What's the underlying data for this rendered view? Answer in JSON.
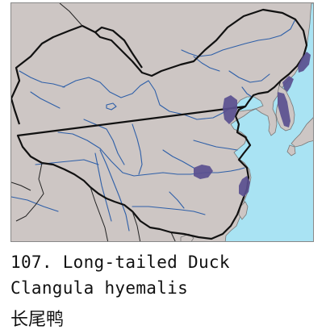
{
  "species": {
    "heading": "107. Long-tailed Duck",
    "scientific_name": "Clangula hyemalis",
    "chinese_name": "长尾鸭"
  },
  "map": {
    "colors": {
      "land": "#cdc6c4",
      "sea": "#a9e3f3",
      "range": "#5a4f8f",
      "river": "#2e5fa8",
      "border": "#111111"
    }
  }
}
